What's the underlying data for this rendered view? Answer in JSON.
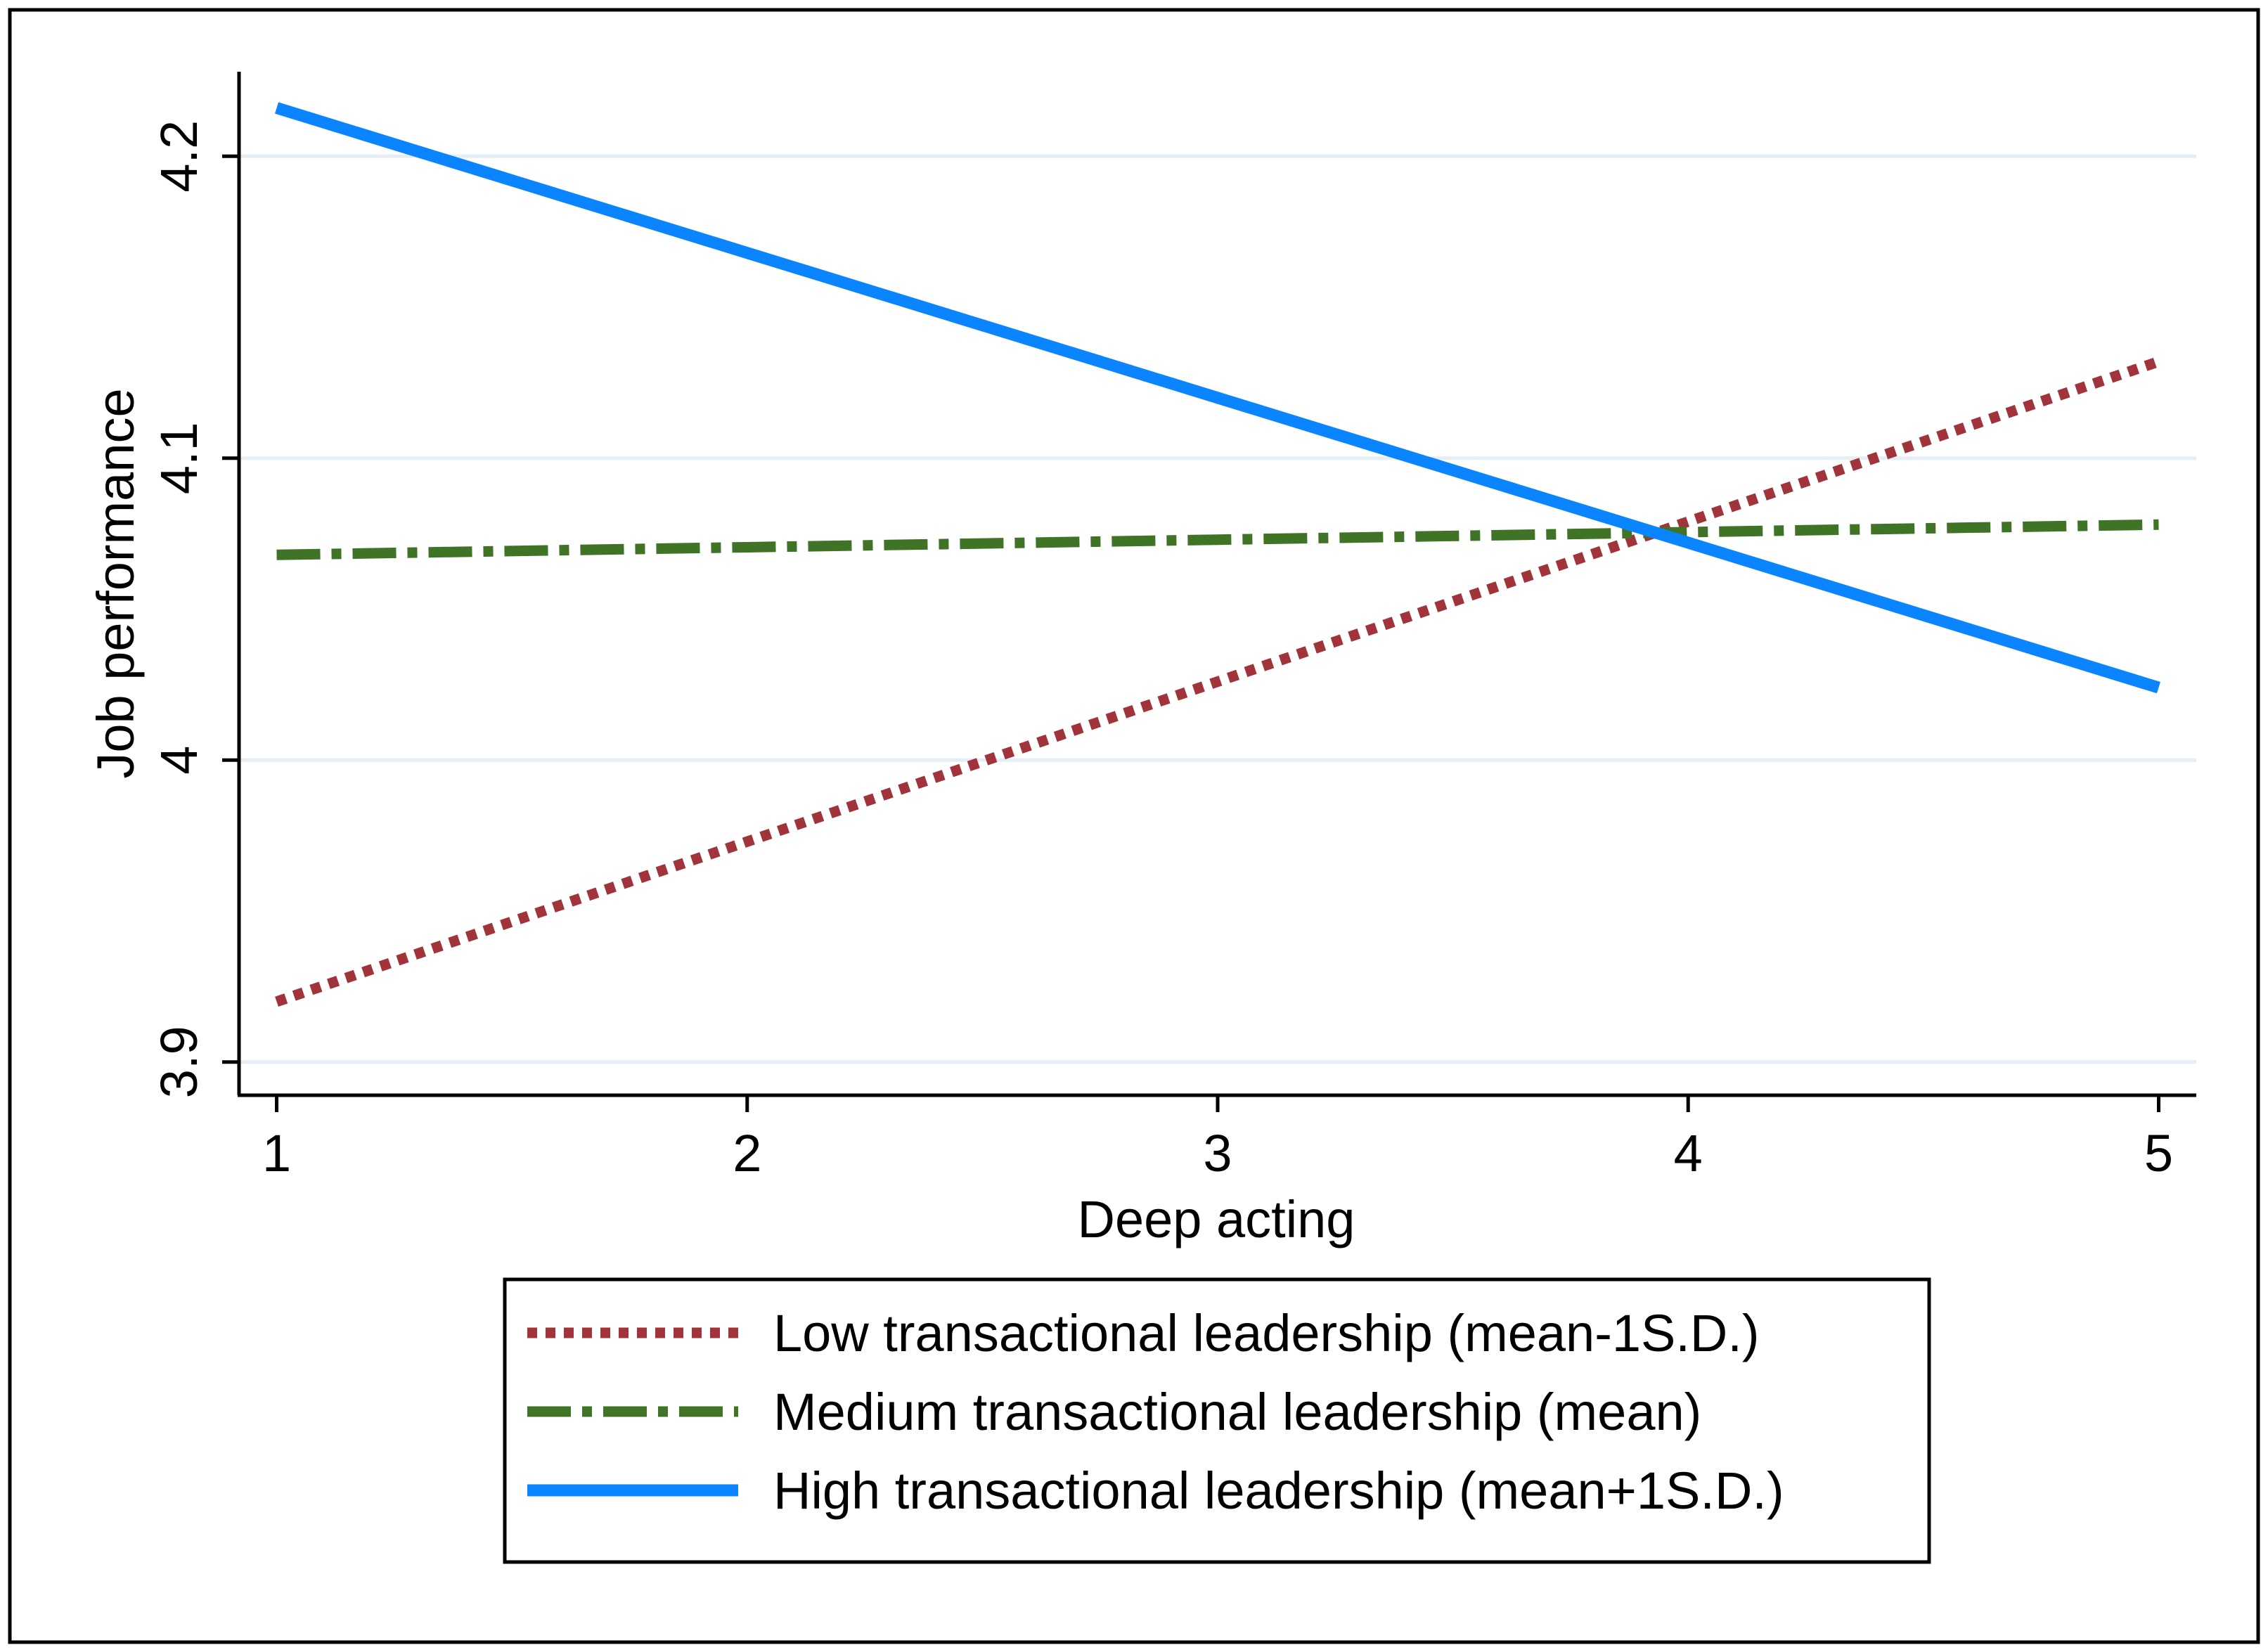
{
  "chart_data": {
    "type": "line",
    "title": "",
    "xlabel": "Deep acting",
    "ylabel": "Job performance",
    "x": [
      1,
      2,
      3,
      4,
      5
    ],
    "xticks": [
      "1",
      "2",
      "3",
      "4",
      "5"
    ],
    "yticks": [
      "3.9",
      "4",
      "4.1",
      "4.2"
    ],
    "ytick_values": [
      3.9,
      4.0,
      4.1,
      4.2
    ],
    "xlim": [
      0.92,
      5.08
    ],
    "ylim": [
      3.889,
      4.228
    ],
    "grid": true,
    "legend_position": "bottom",
    "series": [
      {
        "name": "Low transactional leadership (mean-1S.D.)",
        "color": "#a0343a",
        "style": "dotted",
        "values": [
          3.92,
          3.973,
          4.026,
          4.079,
          4.132
        ]
      },
      {
        "name": "Medium transactional leadership (mean)",
        "color": "#3f7326",
        "style": "dash-dot",
        "values": [
          4.068,
          4.0705,
          4.073,
          4.0755,
          4.078
        ]
      },
      {
        "name": "High transactional leadership (mean+1S.D.)",
        "color": "#0a84ff",
        "style": "solid",
        "values": [
          4.216,
          4.168,
          4.12,
          4.072,
          4.024
        ]
      }
    ]
  }
}
